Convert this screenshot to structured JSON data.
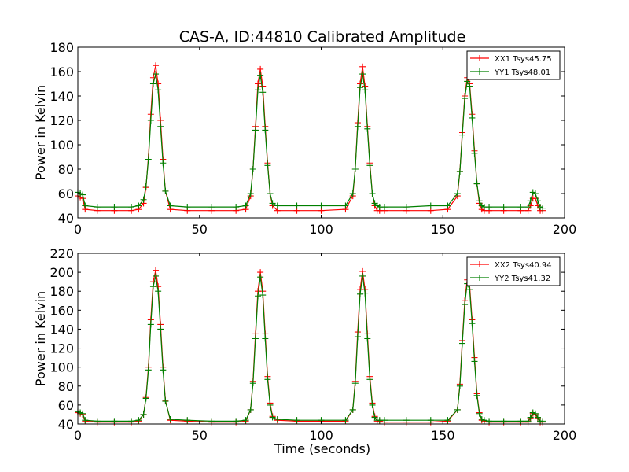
{
  "figure": {
    "title": "CAS-A, ID:44810 Calibrated Amplitude",
    "xlabel": "Time (seconds)"
  },
  "chart_data": [
    {
      "type": "line",
      "title": "CAS-A, ID:44810 Calibrated Amplitude",
      "xlabel": "",
      "ylabel": "Power in Kelvin",
      "xlim": [
        0,
        200
      ],
      "ylim": [
        40,
        180
      ],
      "xticks": [
        0,
        50,
        100,
        150,
        200
      ],
      "yticks": [
        40,
        60,
        80,
        100,
        120,
        140,
        160,
        180
      ],
      "grid": false,
      "legend_position": "top-right",
      "marker": "+",
      "series": [
        {
          "name": "XX1 Tsys45.75",
          "color": "#ff0000",
          "x": [
            0,
            1,
            2,
            3,
            8,
            15,
            22,
            25,
            27,
            28,
            29,
            30,
            31,
            32,
            33,
            34,
            35,
            36,
            38,
            45,
            55,
            65,
            69,
            71,
            72,
            73,
            74,
            75,
            76,
            77,
            78,
            79,
            80,
            82,
            90,
            100,
            110,
            113,
            114,
            115,
            116,
            117,
            118,
            119,
            120,
            121,
            122,
            123,
            124,
            126,
            135,
            145,
            152,
            156,
            157,
            158,
            159,
            160,
            161,
            162,
            163,
            164,
            165,
            166,
            167,
            169,
            175,
            182,
            185,
            186,
            187,
            188,
            189,
            190,
            191
          ],
          "y": [
            58,
            57,
            56,
            47,
            46,
            46,
            46,
            47,
            52,
            65,
            90,
            125,
            155,
            165,
            150,
            120,
            88,
            62,
            47,
            46,
            46,
            46,
            47,
            58,
            80,
            115,
            150,
            162,
            148,
            115,
            85,
            60,
            50,
            46,
            46,
            46,
            47,
            58,
            80,
            118,
            150,
            164,
            148,
            115,
            85,
            60,
            50,
            46,
            46,
            46,
            46,
            46,
            47,
            58,
            78,
            110,
            140,
            155,
            150,
            125,
            95,
            68,
            52,
            47,
            46,
            46,
            46,
            46,
            46,
            50,
            56,
            56,
            50,
            46,
            46
          ]
        },
        {
          "name": "YY1 Tsys48.01",
          "color": "#008000",
          "x": [
            0,
            1,
            2,
            3,
            8,
            15,
            22,
            25,
            27,
            28,
            29,
            30,
            31,
            32,
            33,
            34,
            35,
            36,
            38,
            45,
            55,
            65,
            69,
            71,
            72,
            73,
            74,
            75,
            76,
            77,
            78,
            79,
            80,
            82,
            90,
            100,
            110,
            113,
            114,
            115,
            116,
            117,
            118,
            119,
            120,
            121,
            122,
            123,
            124,
            126,
            135,
            145,
            152,
            156,
            157,
            158,
            159,
            160,
            161,
            162,
            163,
            164,
            165,
            166,
            167,
            169,
            175,
            182,
            185,
            186,
            187,
            188,
            189,
            190,
            191
          ],
          "y": [
            61,
            60,
            59,
            50,
            49,
            49,
            49,
            50,
            55,
            66,
            88,
            120,
            150,
            158,
            145,
            115,
            85,
            62,
            50,
            49,
            49,
            49,
            50,
            60,
            80,
            112,
            145,
            157,
            143,
            112,
            83,
            60,
            52,
            50,
            50,
            50,
            50,
            60,
            80,
            115,
            147,
            158,
            145,
            113,
            83,
            60,
            52,
            50,
            49,
            49,
            49,
            50,
            50,
            60,
            78,
            108,
            138,
            152,
            148,
            122,
            93,
            68,
            54,
            50,
            49,
            49,
            49,
            49,
            49,
            54,
            61,
            60,
            54,
            49,
            48
          ]
        }
      ]
    },
    {
      "type": "line",
      "title": "",
      "xlabel": "Time (seconds)",
      "ylabel": "Power in Kelvin",
      "xlim": [
        0,
        200
      ],
      "ylim": [
        40,
        220
      ],
      "xticks": [
        0,
        50,
        100,
        150,
        200
      ],
      "yticks": [
        40,
        60,
        80,
        100,
        120,
        140,
        160,
        180,
        200,
        220
      ],
      "grid": false,
      "legend_position": "top-right",
      "marker": "+",
      "series": [
        {
          "name": "XX2 Tsys40.94",
          "color": "#ff0000",
          "x": [
            0,
            1,
            2,
            3,
            8,
            15,
            22,
            25,
            27,
            28,
            29,
            30,
            31,
            32,
            33,
            34,
            35,
            36,
            38,
            45,
            55,
            65,
            69,
            71,
            72,
            73,
            74,
            75,
            76,
            77,
            78,
            79,
            80,
            82,
            90,
            100,
            110,
            113,
            114,
            115,
            116,
            117,
            118,
            119,
            120,
            121,
            122,
            123,
            124,
            126,
            135,
            145,
            152,
            156,
            157,
            158,
            159,
            160,
            161,
            162,
            163,
            164,
            165,
            166,
            167,
            169,
            175,
            182,
            185,
            186,
            187,
            188,
            189,
            190,
            191
          ],
          "y": [
            52,
            51,
            50,
            43,
            42,
            42,
            42,
            43,
            50,
            68,
            100,
            150,
            190,
            202,
            185,
            145,
            100,
            65,
            44,
            43,
            42,
            42,
            43,
            55,
            85,
            135,
            180,
            200,
            180,
            135,
            90,
            62,
            48,
            44,
            43,
            43,
            43,
            55,
            85,
            137,
            182,
            201,
            182,
            135,
            90,
            62,
            48,
            43,
            43,
            42,
            42,
            42,
            43,
            55,
            82,
            128,
            170,
            192,
            186,
            150,
            110,
            72,
            52,
            44,
            43,
            42,
            42,
            42,
            42,
            46,
            51,
            50,
            46,
            42,
            42
          ]
        },
        {
          "name": "YY2 Tsys41.32",
          "color": "#008000",
          "x": [
            0,
            1,
            2,
            3,
            8,
            15,
            22,
            25,
            27,
            28,
            29,
            30,
            31,
            32,
            33,
            34,
            35,
            36,
            38,
            45,
            55,
            65,
            69,
            71,
            72,
            73,
            74,
            75,
            76,
            77,
            78,
            79,
            80,
            82,
            90,
            100,
            110,
            113,
            114,
            115,
            116,
            117,
            118,
            119,
            120,
            121,
            122,
            123,
            124,
            126,
            135,
            145,
            152,
            156,
            157,
            158,
            159,
            160,
            161,
            162,
            163,
            164,
            165,
            166,
            167,
            169,
            175,
            182,
            185,
            186,
            187,
            188,
            189,
            190,
            191
          ],
          "y": [
            53,
            52,
            51,
            44,
            43,
            43,
            43,
            44,
            50,
            67,
            97,
            145,
            185,
            196,
            180,
            140,
            97,
            64,
            45,
            44,
            43,
            43,
            44,
            55,
            83,
            130,
            175,
            195,
            176,
            130,
            87,
            60,
            47,
            45,
            44,
            44,
            44,
            55,
            83,
            132,
            177,
            196,
            178,
            130,
            87,
            60,
            47,
            44,
            44,
            44,
            44,
            44,
            44,
            55,
            80,
            125,
            166,
            188,
            182,
            146,
            106,
            70,
            51,
            45,
            44,
            43,
            43,
            43,
            43,
            47,
            52,
            51,
            47,
            43,
            43
          ]
        }
      ]
    }
  ]
}
